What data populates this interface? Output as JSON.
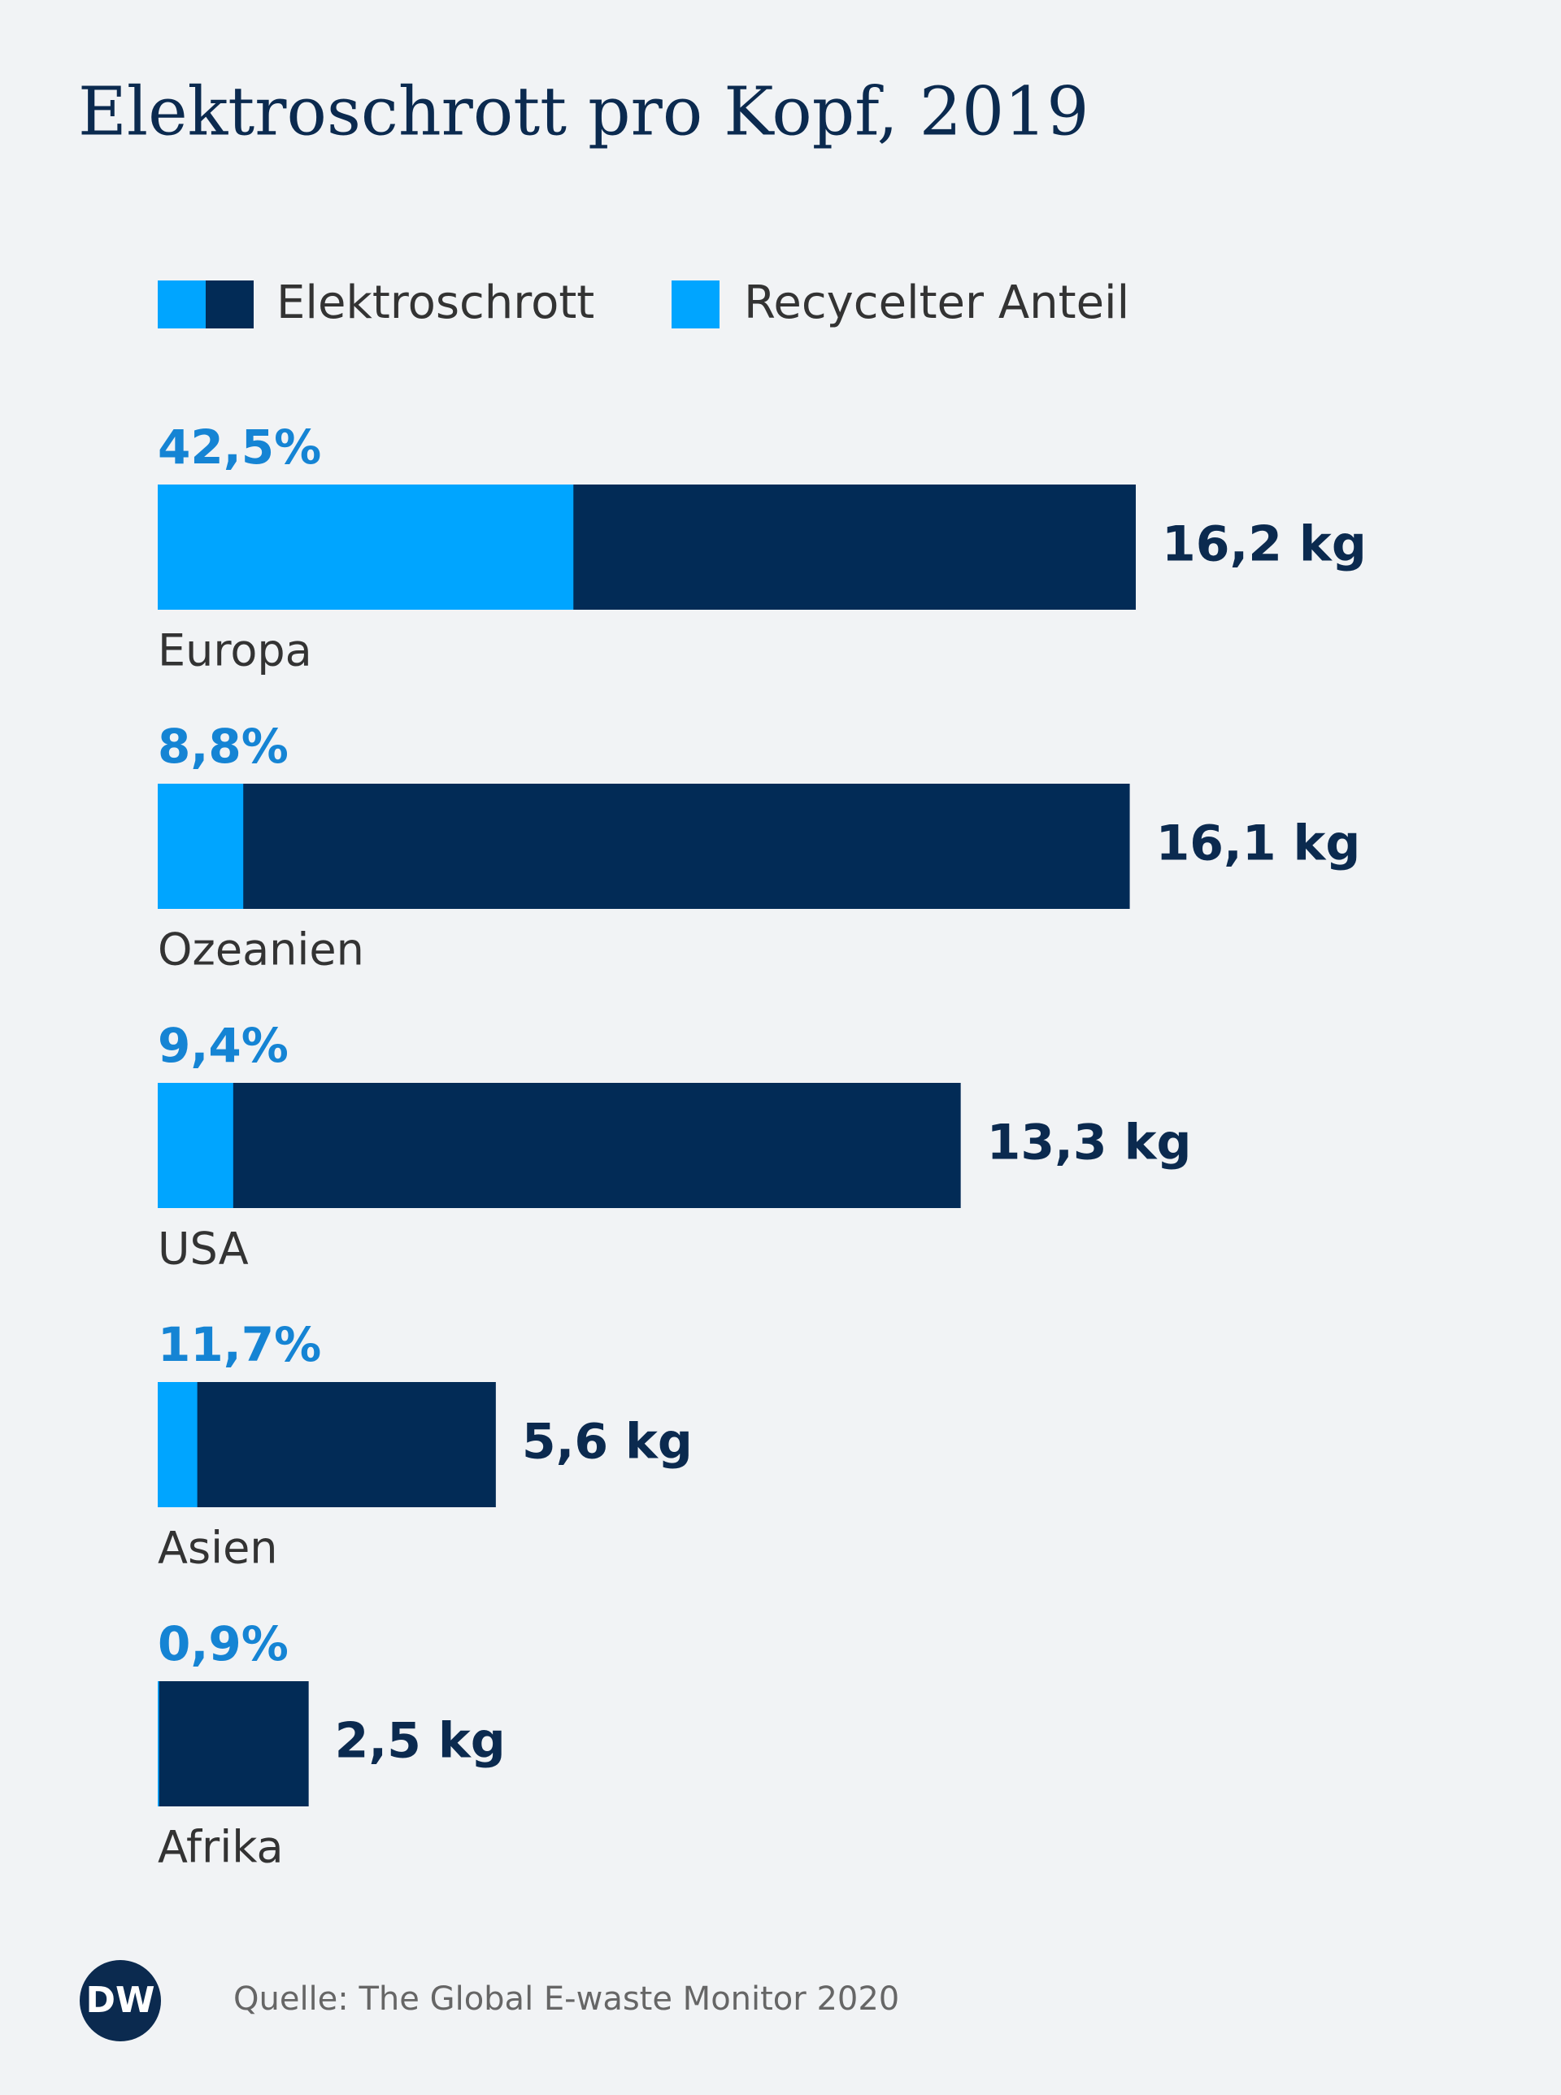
{
  "chart_data": {
    "type": "bar",
    "orientation": "horizontal",
    "title": "Elektroschrott pro Kopf, 2019",
    "categories": [
      "Europa",
      "Ozeanien",
      "USA",
      "Asien",
      "Afrika"
    ],
    "series": [
      {
        "name": "Elektroschrott",
        "color": "#022b56",
        "values": [
          16.2,
          16.1,
          13.3,
          5.6,
          2.5
        ],
        "value_labels": [
          "16,2 kg",
          "16,1 kg",
          "13,3 kg",
          "5,6 kg",
          "2,5 kg"
        ]
      },
      {
        "name": "Recycelter Anteil",
        "color": "#00a5ff",
        "values": [
          42.5,
          8.8,
          9.4,
          11.7,
          0.9
        ],
        "value_labels": [
          "42,5%",
          "8,8%",
          "9,4%",
          "11,7%",
          "0,9%"
        ]
      }
    ],
    "source": "Quelle: The Global E-waste Monitor 2020",
    "logo": "DW"
  }
}
